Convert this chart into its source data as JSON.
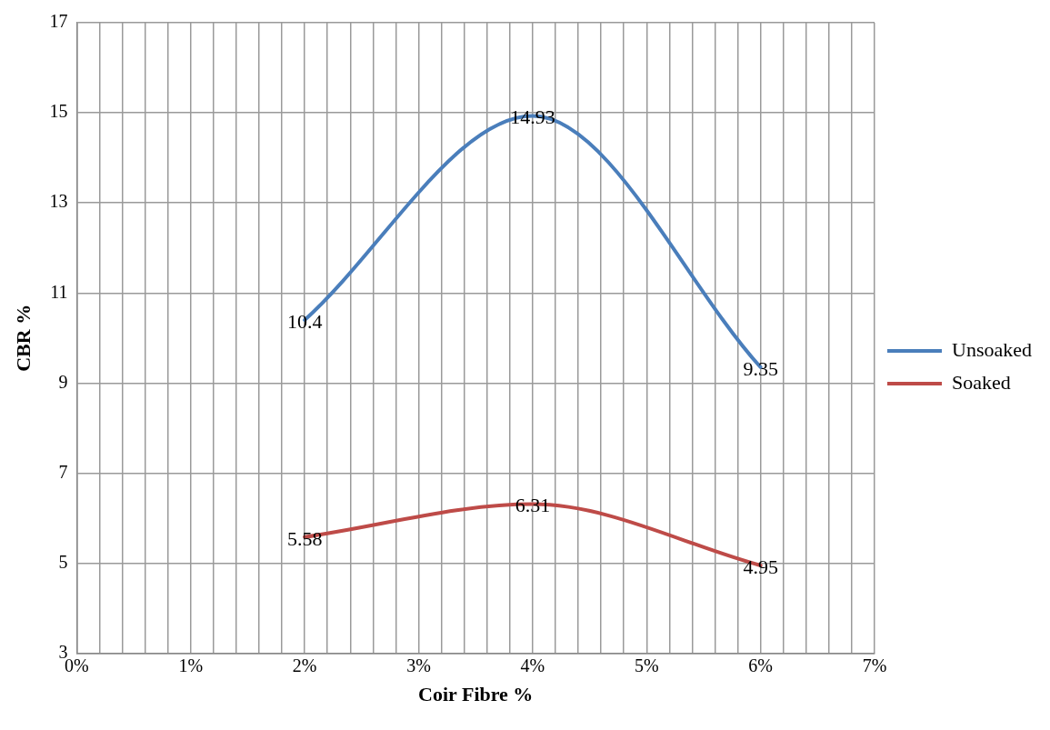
{
  "chart_data": {
    "type": "line",
    "xlabel": "Coir Fibre %",
    "ylabel": "CBR %",
    "x": [
      2,
      4,
      6
    ],
    "series": [
      {
        "name": "Unsoaked",
        "color": "#4a7ebb",
        "values": [
          10.4,
          14.93,
          9.35
        ]
      },
      {
        "name": "Soaked",
        "color": "#be4b48",
        "values": [
          5.58,
          6.31,
          4.95
        ]
      }
    ],
    "xlim": [
      0,
      7
    ],
    "xticks": [
      {
        "value": 0,
        "label": "0%"
      },
      {
        "value": 0.2,
        "label": null
      },
      {
        "value": 0.4,
        "label": null
      },
      {
        "value": 0.6,
        "label": null
      },
      {
        "value": 0.8,
        "label": null
      },
      {
        "value": 1,
        "label": "1%"
      },
      {
        "value": 1.2,
        "label": null
      },
      {
        "value": 1.4,
        "label": null
      },
      {
        "value": 1.6,
        "label": null
      },
      {
        "value": 1.8,
        "label": null
      },
      {
        "value": 2,
        "label": "2%"
      },
      {
        "value": 2.2,
        "label": null
      },
      {
        "value": 2.4,
        "label": null
      },
      {
        "value": 2.6,
        "label": null
      },
      {
        "value": 2.8,
        "label": null
      },
      {
        "value": 3,
        "label": "3%"
      },
      {
        "value": 3.2,
        "label": null
      },
      {
        "value": 3.4,
        "label": null
      },
      {
        "value": 3.6,
        "label": null
      },
      {
        "value": 3.8,
        "label": null
      },
      {
        "value": 4,
        "label": "4%"
      },
      {
        "value": 4.2,
        "label": null
      },
      {
        "value": 4.4,
        "label": null
      },
      {
        "value": 4.6,
        "label": null
      },
      {
        "value": 4.8,
        "label": null
      },
      {
        "value": 5,
        "label": "5%"
      },
      {
        "value": 5.2,
        "label": null
      },
      {
        "value": 5.4,
        "label": null
      },
      {
        "value": 5.6,
        "label": null
      },
      {
        "value": 5.8,
        "label": null
      },
      {
        "value": 6,
        "label": "6%"
      },
      {
        "value": 6.2,
        "label": null
      },
      {
        "value": 6.4,
        "label": null
      },
      {
        "value": 6.6,
        "label": null
      },
      {
        "value": 6.8,
        "label": null
      },
      {
        "value": 7,
        "label": "7%"
      }
    ],
    "ylim": [
      3,
      17
    ],
    "yticks": [
      3,
      5,
      7,
      9,
      11,
      13,
      15,
      17
    ],
    "grid": true,
    "legend": "right",
    "marker": "none",
    "line_style": "solid",
    "data_labels": true
  }
}
